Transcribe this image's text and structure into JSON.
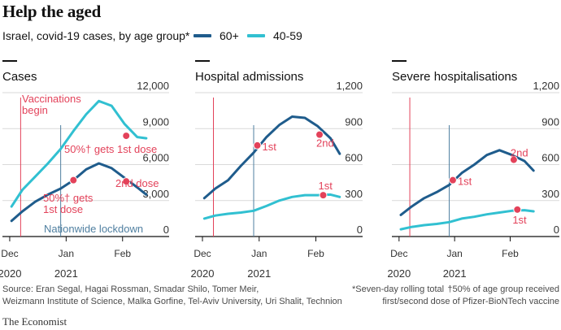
{
  "title": "Help the aged",
  "subtitle": "Israel, covid-19 cases, by age group*",
  "legend": [
    {
      "label": "60+",
      "color": "#1f5c8c"
    },
    {
      "label": "40-59",
      "color": "#31c0d1"
    }
  ],
  "colors": {
    "vaccination_line": "#e3425a",
    "lockdown_line": "#4f7fa0",
    "dose_dot": "#e3425a",
    "grid": "#d9d9d9",
    "axis": "#121212"
  },
  "chart_data": [
    {
      "type": "line",
      "title": "Cases",
      "x_ticks": [
        "Dec",
        "Jan",
        "Feb"
      ],
      "x_years": [
        "2020",
        "2021"
      ],
      "ylim": [
        0,
        12000
      ],
      "y_ticks": [
        "0",
        "3,000",
        "6,000",
        "9,000",
        "12,000"
      ],
      "series": [
        {
          "name": "60+",
          "x": [
            1,
            7,
            14,
            21,
            28,
            35,
            42,
            49,
            56,
            63,
            70,
            75
          ],
          "values": [
            1300,
            2100,
            2900,
            3500,
            4000,
            4700,
            5600,
            6100,
            5700,
            4900,
            4100,
            3500
          ]
        },
        {
          "name": "40-59",
          "x": [
            1,
            7,
            14,
            21,
            28,
            35,
            42,
            49,
            56,
            63,
            70,
            75
          ],
          "values": [
            2500,
            3900,
            5000,
            6100,
            7300,
            8800,
            10200,
            11300,
            10900,
            9400,
            8300,
            8200
          ]
        }
      ],
      "vaccinations_x": 6,
      "lockdown_x": 28,
      "annotations": {
        "vaccinations": "Vaccinations\nbegin",
        "lockdown": "Nationwide lockdown",
        "dose1_4059": "50%† gets 1st dose",
        "dose1_60": "50%† gets\n1st dose",
        "dose2_60": "2nd dose"
      },
      "dose_points": [
        {
          "series": "40-59",
          "x": 64,
          "y": 8400
        },
        {
          "series": "60+",
          "x": 35,
          "y": 4700
        },
        {
          "series": "60+",
          "x": 64,
          "y": 4600
        }
      ]
    },
    {
      "type": "line",
      "title": "Hospital admissions",
      "x_ticks": [
        "Dec",
        "Jan",
        "Feb"
      ],
      "x_years": [
        "2020",
        "2021"
      ],
      "ylim": [
        0,
        1200
      ],
      "y_ticks": [
        "0",
        "300",
        "600",
        "900",
        "1,200"
      ],
      "series": [
        {
          "name": "60+",
          "x": [
            1,
            7,
            14,
            21,
            28,
            35,
            42,
            49,
            56,
            63,
            70,
            75
          ],
          "values": [
            320,
            400,
            470,
            590,
            700,
            830,
            930,
            1000,
            990,
            920,
            820,
            690
          ]
        },
        {
          "name": "40-59",
          "x": [
            1,
            7,
            14,
            21,
            28,
            35,
            42,
            49,
            56,
            63,
            70,
            75
          ],
          "values": [
            150,
            175,
            190,
            200,
            215,
            255,
            300,
            330,
            345,
            345,
            350,
            330
          ]
        }
      ],
      "vaccinations_x": 6,
      "lockdown_x": 28,
      "annotations": {
        "dose1_60": "1st",
        "dose2_60": "2nd",
        "dose1_4059": "1st"
      },
      "dose_points": [
        {
          "series": "60+",
          "x": 30,
          "y": 760
        },
        {
          "series": "60+",
          "x": 64,
          "y": 850
        },
        {
          "series": "40-59",
          "x": 66,
          "y": 345
        }
      ]
    },
    {
      "type": "line",
      "title": "Severe hospitalisations",
      "x_ticks": [
        "Dec",
        "Jan",
        "Feb"
      ],
      "x_years": [
        "2020",
        "2021"
      ],
      "ylim": [
        0,
        1200
      ],
      "y_ticks": [
        "0",
        "300",
        "600",
        "900",
        "1,200"
      ],
      "series": [
        {
          "name": "60+",
          "x": [
            1,
            7,
            14,
            21,
            28,
            35,
            42,
            49,
            56,
            63,
            70,
            75
          ],
          "values": [
            180,
            250,
            320,
            370,
            430,
            530,
            600,
            680,
            720,
            680,
            630,
            550
          ]
        },
        {
          "name": "40-59",
          "x": [
            1,
            7,
            14,
            21,
            28,
            35,
            42,
            49,
            56,
            63,
            70,
            75
          ],
          "values": [
            60,
            80,
            95,
            105,
            120,
            150,
            165,
            185,
            200,
            215,
            220,
            210
          ]
        }
      ],
      "vaccinations_x": 6,
      "lockdown_x": 28,
      "annotations": {
        "dose1_60": "1st",
        "dose2_60": "2nd",
        "dose1_4059": "1st"
      },
      "dose_points": [
        {
          "series": "60+",
          "x": 30,
          "y": 470
        },
        {
          "series": "60+",
          "x": 64,
          "y": 640
        },
        {
          "series": "40-59",
          "x": 66,
          "y": 225
        }
      ]
    }
  ],
  "footer": {
    "source1": "Source: Eran Segal, Hagai Rossman, Smadar Shilo, Tomer Meir,",
    "source2": "Weizmann Institute of Science, Malka Gorfine, Tel-Aviv University, Uri Shalit, Technion",
    "note1": "*Seven-day rolling total",
    "note2a": "†50% of age group received",
    "note2b": "first/second dose of Pfizer-BioNTech vaccine",
    "brand": "The Economist"
  }
}
